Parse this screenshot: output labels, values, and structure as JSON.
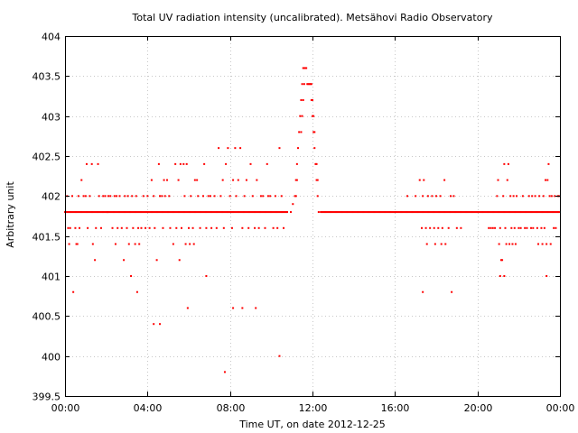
{
  "chart_data": {
    "type": "scatter",
    "title": "Total UV radiation intensity (uncalibrated). Metsähovi Radio Observatory",
    "xlabel": "Time UT, on date 2012-12-25",
    "ylabel": "Arbitrary unit",
    "xlim": [
      0,
      24
    ],
    "ylim": [
      399.5,
      404
    ],
    "x_ticks": [
      0,
      4,
      8,
      12,
      16,
      20,
      24
    ],
    "x_tick_labels": [
      "00:00",
      "04:00",
      "08:00",
      "12:00",
      "16:00",
      "20:00",
      "00:00"
    ],
    "y_ticks": [
      399.5,
      400,
      400.5,
      401,
      401.5,
      402,
      402.5,
      403,
      403.5,
      404
    ],
    "y_tick_labels": [
      "399.5",
      "400",
      "400.5",
      "401",
      "401.5",
      "402",
      "402.5",
      "403",
      "403.5",
      "404"
    ],
    "grid": true,
    "legend": "none",
    "color": "#ff0000",
    "baseline_value": 401.8,
    "baseline_segments": [
      [
        0,
        10.8
      ],
      [
        12.4,
        24
      ]
    ],
    "points": [
      [
        0.1,
        402
      ],
      [
        0.15,
        401.6
      ],
      [
        0.2,
        401.4
      ],
      [
        0.25,
        401.6
      ],
      [
        0.35,
        402
      ],
      [
        0.5,
        401.6
      ],
      [
        0.55,
        401.4
      ],
      [
        0.6,
        401.4
      ],
      [
        0.65,
        402
      ],
      [
        0.7,
        401.6
      ],
      [
        0.8,
        402.2
      ],
      [
        0.9,
        402
      ],
      [
        1.0,
        402
      ],
      [
        1.05,
        402.4
      ],
      [
        1.1,
        401.6
      ],
      [
        1.2,
        402
      ],
      [
        1.3,
        402.4
      ],
      [
        1.35,
        401.4
      ],
      [
        1.45,
        401.2
      ],
      [
        1.5,
        401.6
      ],
      [
        1.6,
        402.4
      ],
      [
        1.65,
        402
      ],
      [
        1.75,
        401.6
      ],
      [
        1.85,
        402
      ],
      [
        1.95,
        402
      ],
      [
        2.05,
        401.8
      ],
      [
        2.1,
        402
      ],
      [
        2.2,
        402
      ],
      [
        2.3,
        401.6
      ],
      [
        2.4,
        402
      ],
      [
        2.45,
        401.4
      ],
      [
        2.5,
        402
      ],
      [
        2.55,
        401.6
      ],
      [
        2.65,
        402
      ],
      [
        2.75,
        401.6
      ],
      [
        2.85,
        401.2
      ],
      [
        2.9,
        402
      ],
      [
        3.0,
        401.6
      ],
      [
        3.05,
        402
      ],
      [
        3.1,
        401.4
      ],
      [
        3.2,
        401
      ],
      [
        3.25,
        402
      ],
      [
        3.3,
        401.6
      ],
      [
        3.4,
        401.4
      ],
      [
        3.45,
        402
      ],
      [
        3.55,
        401.6
      ],
      [
        3.6,
        401.4
      ],
      [
        3.7,
        401.6
      ],
      [
        3.8,
        402
      ],
      [
        3.9,
        401.6
      ],
      [
        4.0,
        402
      ],
      [
        4.1,
        401.6
      ],
      [
        4.2,
        402.2
      ],
      [
        4.3,
        402
      ],
      [
        4.35,
        401.6
      ],
      [
        4.45,
        401.2
      ],
      [
        4.55,
        402.4
      ],
      [
        4.6,
        402
      ],
      [
        4.7,
        402
      ],
      [
        4.75,
        401.6
      ],
      [
        4.8,
        402.2
      ],
      [
        4.85,
        402
      ],
      [
        4.95,
        402.2
      ],
      [
        5.05,
        402
      ],
      [
        5.1,
        401.6
      ],
      [
        5.25,
        401.4
      ],
      [
        5.35,
        402.4
      ],
      [
        5.4,
        401.6
      ],
      [
        5.5,
        402.2
      ],
      [
        5.55,
        401.2
      ],
      [
        5.6,
        402.4
      ],
      [
        5.65,
        401.6
      ],
      [
        5.75,
        402.4
      ],
      [
        5.8,
        402
      ],
      [
        5.85,
        401.4
      ],
      [
        5.9,
        402.4
      ],
      [
        6.0,
        401.6
      ],
      [
        6.05,
        401.4
      ],
      [
        6.1,
        402
      ],
      [
        6.2,
        401.6
      ],
      [
        6.25,
        401.4
      ],
      [
        6.3,
        402.2
      ],
      [
        6.4,
        402.2
      ],
      [
        6.45,
        402
      ],
      [
        6.55,
        401.6
      ],
      [
        6.7,
        402
      ],
      [
        6.75,
        402.4
      ],
      [
        6.85,
        401.6
      ],
      [
        6.95,
        402
      ],
      [
        7.05,
        402
      ],
      [
        7.1,
        401.6
      ],
      [
        7.25,
        402
      ],
      [
        7.35,
        401.6
      ],
      [
        7.45,
        402.6
      ],
      [
        7.55,
        402
      ],
      [
        7.65,
        402.2
      ],
      [
        7.7,
        401.6
      ],
      [
        7.8,
        402.4
      ],
      [
        7.9,
        402.6
      ],
      [
        8.0,
        402
      ],
      [
        8.1,
        401.6
      ],
      [
        8.15,
        402.2
      ],
      [
        8.25,
        402.6
      ],
      [
        8.3,
        402
      ],
      [
        8.4,
        402.2
      ],
      [
        8.5,
        402.6
      ],
      [
        8.6,
        401.6
      ],
      [
        8.7,
        402
      ],
      [
        8.8,
        402.2
      ],
      [
        8.9,
        401.6
      ],
      [
        9.0,
        402.4
      ],
      [
        9.1,
        402
      ],
      [
        9.2,
        401.6
      ],
      [
        9.3,
        402.2
      ],
      [
        9.4,
        401.6
      ],
      [
        9.5,
        402
      ],
      [
        9.6,
        402
      ],
      [
        9.7,
        401.6
      ],
      [
        9.8,
        402.4
      ],
      [
        9.85,
        402
      ],
      [
        9.95,
        402
      ],
      [
        10.1,
        401.6
      ],
      [
        10.2,
        402
      ],
      [
        10.3,
        401.6
      ],
      [
        10.4,
        402.6
      ],
      [
        10.5,
        402
      ],
      [
        10.6,
        401.6
      ],
      [
        3.5,
        400.8
      ],
      [
        4.3,
        400.4
      ],
      [
        4.6,
        400.4
      ],
      [
        5.95,
        400.6
      ],
      [
        6.85,
        401
      ],
      [
        7.75,
        399.8
      ],
      [
        8.15,
        400.6
      ],
      [
        8.6,
        400.6
      ],
      [
        9.25,
        400.6
      ],
      [
        10.4,
        400
      ],
      [
        0.4,
        400.8
      ],
      [
        10.95,
        401.8
      ],
      [
        11.05,
        401.9
      ],
      [
        11.15,
        402
      ],
      [
        11.2,
        402.2
      ],
      [
        11.25,
        402.4
      ],
      [
        11.3,
        402.6
      ],
      [
        11.35,
        402.8
      ],
      [
        11.4,
        403
      ],
      [
        11.45,
        403.2
      ],
      [
        11.5,
        403.4
      ],
      [
        11.55,
        403.6
      ],
      [
        11.6,
        403.6
      ],
      [
        11.65,
        403.6
      ],
      [
        11.7,
        403.6
      ],
      [
        11.75,
        403.4
      ],
      [
        11.8,
        403.4
      ],
      [
        11.85,
        403.4
      ],
      [
        11.9,
        403.4
      ],
      [
        11.95,
        403.2
      ],
      [
        12.0,
        403
      ],
      [
        12.05,
        402.8
      ],
      [
        12.1,
        402.6
      ],
      [
        12.15,
        402.4
      ],
      [
        12.2,
        402.2
      ],
      [
        12.25,
        402
      ],
      [
        12.3,
        401.8
      ],
      [
        11.45,
        402.8
      ],
      [
        11.5,
        403
      ],
      [
        11.55,
        403.2
      ],
      [
        11.6,
        403.4
      ],
      [
        11.95,
        403.4
      ],
      [
        12.0,
        403.2
      ],
      [
        12.05,
        403
      ],
      [
        12.1,
        402.8
      ],
      [
        11.2,
        402
      ],
      [
        11.25,
        402.2
      ],
      [
        12.2,
        402.4
      ],
      [
        12.25,
        402.2
      ],
      [
        16.6,
        402
      ],
      [
        17.0,
        402
      ],
      [
        17.2,
        402.2
      ],
      [
        17.3,
        401.6
      ],
      [
        17.35,
        402
      ],
      [
        17.4,
        402.2
      ],
      [
        17.5,
        401.6
      ],
      [
        17.55,
        401.4
      ],
      [
        17.6,
        402
      ],
      [
        17.7,
        401.6
      ],
      [
        17.8,
        402
      ],
      [
        17.9,
        401.6
      ],
      [
        17.95,
        401.4
      ],
      [
        18.0,
        402
      ],
      [
        18.1,
        401.6
      ],
      [
        18.2,
        402
      ],
      [
        18.25,
        401.4
      ],
      [
        18.3,
        401.6
      ],
      [
        18.4,
        402.2
      ],
      [
        18.45,
        401.4
      ],
      [
        18.6,
        401.6
      ],
      [
        18.7,
        402
      ],
      [
        18.85,
        402
      ],
      [
        19.0,
        401.6
      ],
      [
        19.2,
        401.6
      ],
      [
        17.35,
        400.8
      ],
      [
        18.75,
        400.8
      ],
      [
        20.55,
        401.6
      ],
      [
        20.65,
        401.6
      ],
      [
        20.75,
        401.6
      ],
      [
        20.85,
        401.6
      ],
      [
        20.95,
        402
      ],
      [
        21.0,
        402.2
      ],
      [
        21.05,
        401.4
      ],
      [
        21.1,
        401.6
      ],
      [
        21.15,
        401.2
      ],
      [
        21.2,
        401.2
      ],
      [
        21.25,
        402
      ],
      [
        21.3,
        402.4
      ],
      [
        21.35,
        401.6
      ],
      [
        21.4,
        401.4
      ],
      [
        21.45,
        402.2
      ],
      [
        21.5,
        402.4
      ],
      [
        21.55,
        401.4
      ],
      [
        21.6,
        402
      ],
      [
        21.65,
        401.6
      ],
      [
        21.7,
        401.4
      ],
      [
        21.75,
        402
      ],
      [
        21.8,
        401.6
      ],
      [
        21.85,
        401.4
      ],
      [
        21.9,
        402
      ],
      [
        22.0,
        401.6
      ],
      [
        22.1,
        401.6
      ],
      [
        22.2,
        402
      ],
      [
        22.3,
        401.6
      ],
      [
        22.4,
        401.6
      ],
      [
        22.5,
        402
      ],
      [
        22.6,
        401.6
      ],
      [
        22.65,
        402
      ],
      [
        22.7,
        401.6
      ],
      [
        22.8,
        402
      ],
      [
        22.9,
        401.6
      ],
      [
        22.95,
        401.4
      ],
      [
        23.0,
        402
      ],
      [
        23.1,
        401.6
      ],
      [
        23.15,
        401.4
      ],
      [
        23.2,
        402
      ],
      [
        23.25,
        401.6
      ],
      [
        23.3,
        402.2
      ],
      [
        23.35,
        401.4
      ],
      [
        23.4,
        402.2
      ],
      [
        23.45,
        402.4
      ],
      [
        23.5,
        402
      ],
      [
        23.55,
        401.4
      ],
      [
        23.6,
        402
      ],
      [
        23.7,
        401.6
      ],
      [
        23.75,
        402
      ],
      [
        23.8,
        401.6
      ],
      [
        23.9,
        402
      ],
      [
        23.95,
        402
      ],
      [
        21.1,
        401
      ],
      [
        21.3,
        401
      ],
      [
        23.35,
        401
      ]
    ]
  }
}
